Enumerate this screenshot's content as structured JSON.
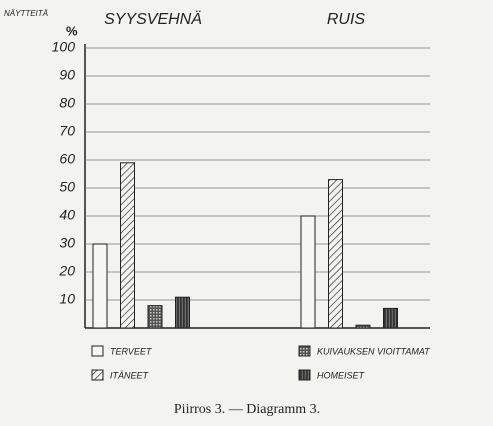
{
  "chart_data": {
    "type": "bar",
    "y_label": "NÄYTTEITÄ",
    "y_unit": "%",
    "categories": [
      "SYYSVEHNÄ",
      "RUIS"
    ],
    "series": [
      {
        "name": "TERVEET",
        "color": "#222222",
        "pattern": "none",
        "values": [
          30,
          40
        ]
      },
      {
        "name": "ITÄNEET",
        "color": "#222222",
        "pattern": "diagonal",
        "values": [
          59,
          53
        ]
      },
      {
        "name": "KUIVAUKSEN VIOITTAMAT",
        "color": "#222222",
        "pattern": "cross",
        "values": [
          8,
          1
        ]
      },
      {
        "name": "HOMEISET",
        "color": "#222222",
        "pattern": "vertical",
        "values": [
          11,
          7
        ]
      }
    ],
    "ylim": [
      0,
      100
    ],
    "yticks": [
      10,
      20,
      30,
      40,
      50,
      60,
      70,
      80,
      90,
      100
    ],
    "grid": true,
    "caption": "Piirros 3. — Diagramm 3."
  }
}
